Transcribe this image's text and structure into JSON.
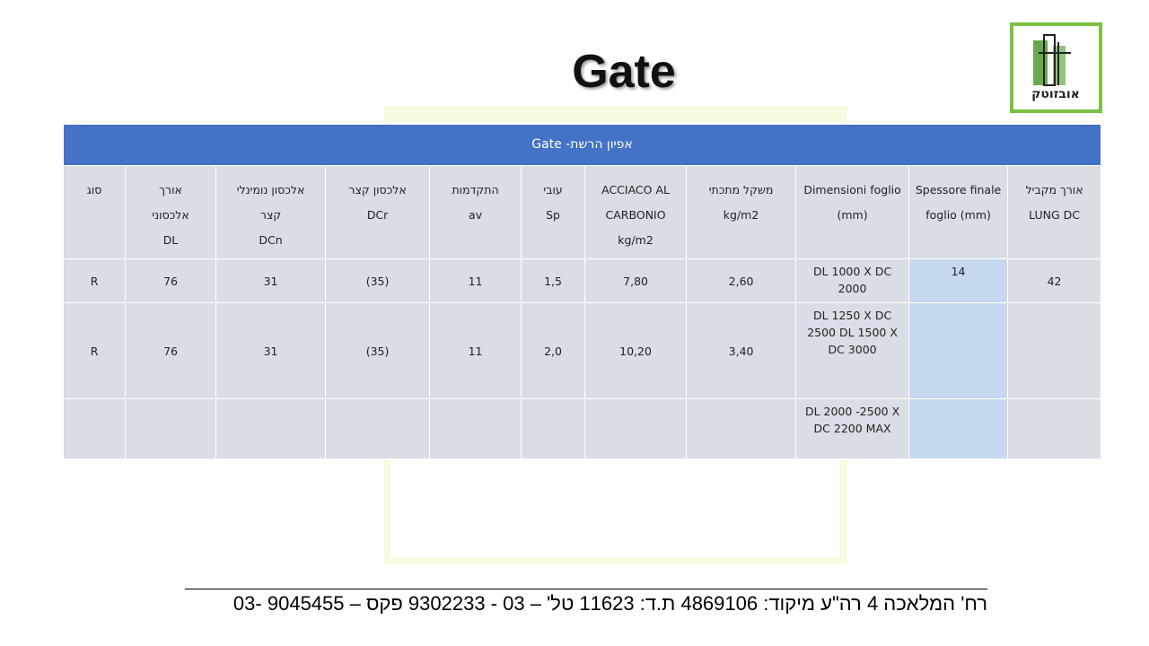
{
  "title": "Gate",
  "logo": {
    "text": "אובזוטק"
  },
  "table": {
    "caption": "אפיון הרשת- Gate",
    "headers": [
      {
        "lines": [
          "אורך מקביל",
          "LUNG DC"
        ]
      },
      {
        "lines": [
          "Spessore finale",
          "foglio (mm)"
        ]
      },
      {
        "lines": [
          "Dimensioni foglio",
          "(mm)"
        ]
      },
      {
        "lines": [
          "משקל מתכתי",
          "kg/m2"
        ]
      },
      {
        "lines": [
          "ACCIACO AL",
          "CARBONIO",
          "kg/m2"
        ]
      },
      {
        "lines": [
          "עובי",
          "Sp"
        ]
      },
      {
        "lines": [
          "התקדמות",
          "av"
        ]
      },
      {
        "lines": [
          "אלכסון קצר",
          "DCr"
        ]
      },
      {
        "lines": [
          "אלכסון נומינלי",
          "קצר",
          "DCn"
        ]
      },
      {
        "lines": [
          "אורך",
          "אלכסוני",
          "DL"
        ]
      },
      {
        "lines": [
          "סוג"
        ]
      }
    ],
    "rows": [
      [
        "42",
        "14",
        "DL 1000 X DC 2000",
        "2,60",
        "7,80",
        "1,5",
        "11",
        "(35)",
        "31",
        "76",
        "R"
      ],
      [
        null,
        null,
        "DL 1250 X DC 2500 DL 1500 X DC 3000",
        "3,40",
        "10,20",
        "2,0",
        "11",
        "(35)",
        "31",
        "76",
        "R"
      ],
      [
        null,
        null,
        "DL 2000 -2500 X DC 2200 MAX",
        null,
        null,
        null,
        null,
        null,
        null,
        null,
        null
      ]
    ]
  },
  "footer": "רח' המלאכה 4 רה\"ע מיקוד: 4869106 ת.ד: 11623 טל' – 03 - 9302233 פקס – 9045455 -03"
}
